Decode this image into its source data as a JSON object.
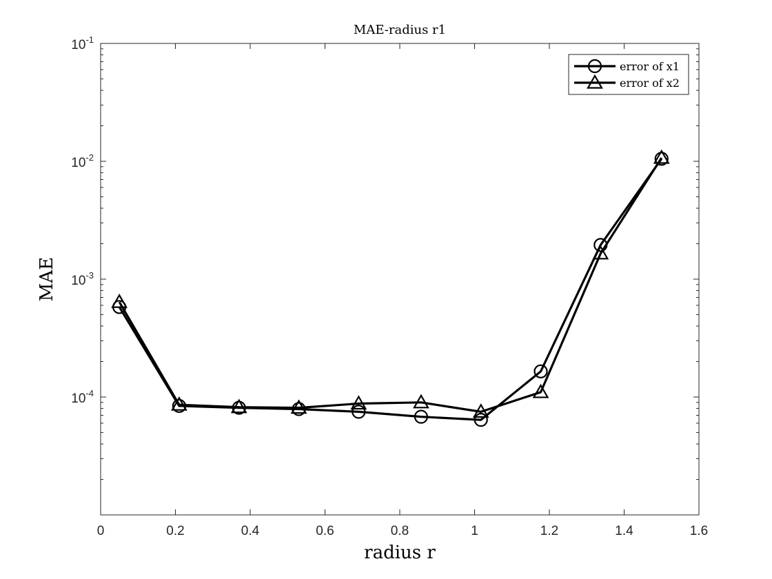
{
  "chart_data": {
    "type": "line",
    "title": "MAE-radius r1",
    "xlabel": "radius r",
    "ylabel": "MAE",
    "xlim": [
      0,
      1.6
    ],
    "ylim": [
      1e-05,
      0.1
    ],
    "yscale": "log",
    "grid": false,
    "legend_position": "top-right",
    "xticks": [
      "0",
      "0.2",
      "0.4",
      "0.6",
      "0.8",
      "1",
      "1.2",
      "1.4",
      "1.6"
    ],
    "yticks": [
      {
        "base": "10",
        "exp": "-4"
      },
      {
        "base": "10",
        "exp": "-3"
      },
      {
        "base": "10",
        "exp": "-2"
      },
      {
        "base": "10",
        "exp": "-1"
      }
    ],
    "x": [
      0.05,
      0.21,
      0.37,
      0.53,
      0.69,
      0.857,
      1.017,
      1.177,
      1.337,
      1.5
    ],
    "series": [
      {
        "name": "error of x1",
        "marker": "circle",
        "color": "#000000",
        "values": [
          0.00058,
          8.4e-05,
          8.1e-05,
          7.9e-05,
          7.5e-05,
          6.8e-05,
          6.4e-05,
          0.000165,
          0.00195,
          0.0105
        ]
      },
      {
        "name": "error of x2",
        "marker": "triangle",
        "color": "#000000",
        "values": [
          0.00064,
          8.6e-05,
          8.2e-05,
          8.1e-05,
          8.8e-05,
          9e-05,
          7.5e-05,
          0.00011,
          0.00165,
          0.0107
        ]
      }
    ]
  }
}
